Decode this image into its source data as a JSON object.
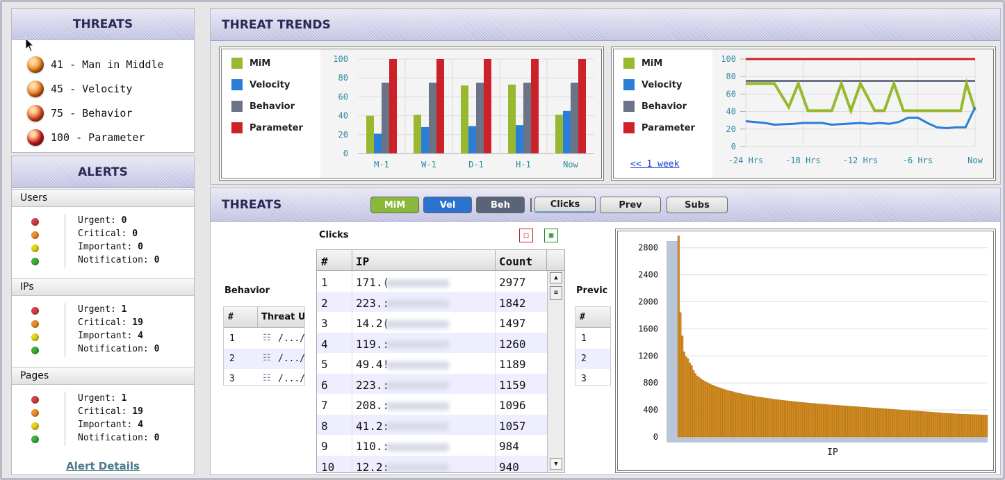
{
  "threats_panel": {
    "title": "THREATS",
    "items": [
      {
        "label": "41 - Man in Middle",
        "color": "#e8861a"
      },
      {
        "label": "45 - Velocity",
        "color": "#e8781a"
      },
      {
        "label": "75 - Behavior",
        "color": "#e04d2a"
      },
      {
        "label": "100 - Parameter",
        "color": "#d0181c"
      }
    ]
  },
  "alerts_panel": {
    "title": "ALERTS",
    "sections": [
      {
        "label": "Users",
        "rows": [
          {
            "name": "Urgent:",
            "value": "0"
          },
          {
            "name": "Critical:",
            "value": "0"
          },
          {
            "name": "Important:",
            "value": "0"
          },
          {
            "name": "Notification:",
            "value": "0"
          }
        ]
      },
      {
        "label": "IPs",
        "rows": [
          {
            "name": "Urgent:",
            "value": "1"
          },
          {
            "name": "Critical:",
            "value": "19"
          },
          {
            "name": "Important:",
            "value": "4"
          },
          {
            "name": "Notification:",
            "value": "0"
          }
        ]
      },
      {
        "label": "Pages",
        "rows": [
          {
            "name": "Urgent:",
            "value": "1"
          },
          {
            "name": "Critical:",
            "value": "19"
          },
          {
            "name": "Important:",
            "value": "4"
          },
          {
            "name": "Notification:",
            "value": "0"
          }
        ]
      }
    ],
    "dot_colors": [
      "#d8404a",
      "#f0902a",
      "#e8d81a",
      "#40b040"
    ],
    "details_link": "Alert Details"
  },
  "trends_panel": {
    "title": "THREAT TRENDS",
    "week_link": "<< 1 week"
  },
  "legend": [
    {
      "name": "MiM",
      "color": "#98b830"
    },
    {
      "name": "Velocity",
      "color": "#2a7ed8"
    },
    {
      "name": "Behavior",
      "color": "#6a7486"
    },
    {
      "name": "Parameter",
      "color": "#cc2128"
    }
  ],
  "threats_section": {
    "title": "THREATS",
    "tabs": [
      {
        "label": "MiM",
        "bg": "#8ab83a",
        "fg": "#ffffff"
      },
      {
        "label": "Vel",
        "bg": "#2a72cc",
        "fg": "#ffffff"
      },
      {
        "label": "Beh",
        "bg": "#5a6478",
        "fg": "#ffffff"
      },
      {
        "label": "Clicks",
        "bg": "#d8d8d8",
        "fg": "#222222"
      },
      {
        "label": "Prev",
        "bg": "#d8d8d8",
        "fg": "#222222"
      },
      {
        "label": "Subs",
        "bg": "#d8d8d8",
        "fg": "#222222"
      }
    ],
    "behavior_label": "Behavior",
    "behavior_columns": [
      "#",
      "Threat U"
    ],
    "behavior_rows": [
      {
        "num": "1",
        "path": "/.../"
      },
      {
        "num": "2",
        "path": "/.../"
      },
      {
        "num": "3",
        "path": "/.../"
      }
    ],
    "clicks_label": "Clicks",
    "clicks_columns": [
      "#",
      "IP",
      "Count"
    ],
    "clicks_rows": [
      {
        "num": "1",
        "ip": "171.(",
        "count": "2977"
      },
      {
        "num": "2",
        "ip": "223.:",
        "count": "1842"
      },
      {
        "num": "3",
        "ip": "14.2(",
        "count": "1497"
      },
      {
        "num": "4",
        "ip": "119.:",
        "count": "1260"
      },
      {
        "num": "5",
        "ip": "49.4!",
        "count": "1189"
      },
      {
        "num": "6",
        "ip": "223.:",
        "count": "1159"
      },
      {
        "num": "7",
        "ip": "208.:",
        "count": "1096"
      },
      {
        "num": "8",
        "ip": "41.2:",
        "count": "1057"
      },
      {
        "num": "9",
        "ip": "110.:",
        "count": "984"
      },
      {
        "num": "10",
        "ip": "12.2:",
        "count": "940"
      }
    ],
    "prev_label": "Previc",
    "prev_columns": [
      "#"
    ],
    "prev_rows": [
      "1",
      "2",
      "3"
    ]
  },
  "chart_data": [
    {
      "type": "bar",
      "categories": [
        "M-1",
        "W-1",
        "D-1",
        "H-1",
        "Now"
      ],
      "series": [
        {
          "name": "MiM",
          "values": [
            40,
            41,
            72,
            73,
            41
          ]
        },
        {
          "name": "Velocity",
          "values": [
            21,
            28,
            29,
            30,
            45
          ]
        },
        {
          "name": "Behavior",
          "values": [
            75,
            75,
            75,
            75,
            75
          ]
        },
        {
          "name": "Parameter",
          "values": [
            100,
            100,
            100,
            100,
            100
          ]
        }
      ],
      "yticks": [
        0,
        20,
        40,
        60,
        80,
        100
      ],
      "ylim": [
        0,
        100
      ],
      "grid": true,
      "legend": "left"
    },
    {
      "type": "line",
      "xticks": [
        "-24 Hrs",
        "-18 Hrs",
        "-12 Hrs",
        "-6 Hrs",
        "Now"
      ],
      "xlim": [
        -24,
        0
      ],
      "series": [
        {
          "name": "MiM",
          "x": [
            -24,
            -21,
            -19.5,
            -18.5,
            -17.5,
            -16.5,
            -15,
            -14,
            -13,
            -12,
            -10.5,
            -9.5,
            -8.5,
            -7.5,
            -4,
            -1.5,
            -0.9,
            0
          ],
          "y": [
            72,
            72,
            45,
            72,
            41,
            41,
            41,
            72,
            41,
            72,
            41,
            41,
            72,
            41,
            41,
            41,
            72,
            41
          ]
        },
        {
          "name": "Velocity",
          "x": [
            -24,
            -22,
            -21,
            -19,
            -18,
            -16,
            -15,
            -12,
            -11,
            -10,
            -9,
            -8,
            -7,
            -6,
            -5,
            -4,
            -3,
            -2,
            -1,
            0
          ],
          "y": [
            29,
            27,
            25,
            26,
            27,
            27,
            25,
            27,
            26,
            27,
            26,
            28,
            33,
            33,
            27,
            22,
            21,
            22,
            22,
            45
          ]
        },
        {
          "name": "Behavior",
          "x": [
            -24,
            0
          ],
          "y": [
            75,
            75
          ]
        },
        {
          "name": "Parameter",
          "x": [
            -24,
            0
          ],
          "y": [
            100,
            100
          ]
        }
      ],
      "yticks": [
        0,
        20,
        40,
        60,
        80,
        100
      ],
      "ylim": [
        0,
        100
      ],
      "grid": true,
      "legend": "left"
    },
    {
      "type": "bar",
      "xlabel": "IP",
      "yticks": [
        0,
        400,
        800,
        1200,
        1600,
        2000,
        2400,
        2800
      ],
      "ylim": [
        0,
        2900
      ],
      "values": [
        2977,
        1842,
        1497,
        1260,
        1189,
        1159,
        1096,
        1057,
        984,
        940,
        905,
        880,
        860,
        842,
        825,
        810,
        795,
        782,
        770,
        758,
        747,
        737,
        727,
        718,
        709,
        700,
        692,
        684,
        677,
        670,
        663,
        656,
        650,
        644,
        638,
        632,
        626,
        621,
        616,
        611,
        606,
        601,
        596,
        592,
        587,
        583,
        579,
        575,
        571,
        567,
        563,
        559,
        556,
        552,
        549,
        545,
        542,
        539,
        536,
        533,
        530,
        527,
        524,
        521,
        518,
        515,
        512,
        510,
        507,
        505,
        502,
        500,
        497,
        495,
        493,
        490,
        488,
        486,
        484,
        482,
        479,
        477,
        475,
        473,
        471,
        469,
        467,
        465,
        463,
        461,
        459,
        457,
        455,
        453,
        451,
        449,
        447,
        445,
        443,
        441,
        439,
        437,
        435,
        433,
        431,
        429,
        427,
        425,
        423,
        421,
        419,
        417,
        415,
        413,
        411,
        409,
        407,
        405,
        403,
        401,
        399,
        397,
        395,
        393,
        391,
        389,
        387,
        385,
        383,
        381,
        379,
        377,
        375,
        373,
        371,
        369,
        367,
        365,
        363,
        361,
        359,
        357,
        355,
        353,
        351,
        349,
        347,
        345,
        343,
        341,
        340,
        339,
        338,
        337,
        336,
        335,
        334,
        333,
        332,
        331,
        330,
        329,
        328,
        327,
        326,
        325
      ],
      "bar_color": "#d08a20",
      "grid": true
    }
  ]
}
